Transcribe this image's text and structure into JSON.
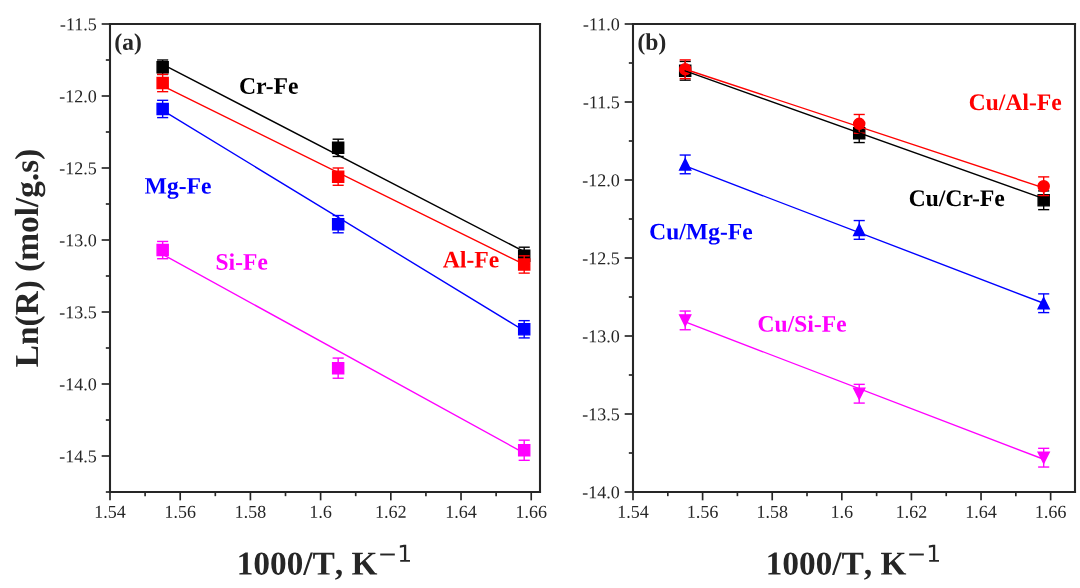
{
  "chart_data": [
    {
      "type": "scatter",
      "annotations": [
        "(a)"
      ],
      "xlabel": "1000/T, K$^{−1}$",
      "ylabel": "Ln(R) (mol/g.s)",
      "xlim": [
        1.54,
        1.6625
      ],
      "ylim": [
        -14.75,
        -11.5
      ],
      "xticks": [
        1.54,
        1.56,
        1.58,
        1.6,
        1.62,
        1.64,
        1.66
      ],
      "yticks": [
        {
          "value": -11.5,
          "label": "-11.5"
        },
        {
          "value": -12.0,
          "label": "-12.0"
        },
        {
          "value": -12.5,
          "label": "-12.5"
        },
        {
          "value": -13.0,
          "label": "-13.0"
        },
        {
          "value": -13.5,
          "label": "-13.5"
        },
        {
          "value": -14.0,
          "label": "-14.0"
        },
        {
          "value": -14.5,
          "label": "-14.5"
        }
      ],
      "legend": false,
      "grid": false,
      "series": [
        {
          "name": "Cr-Fe",
          "color": "#000000",
          "marker": "square",
          "x": [
            1.555,
            1.605,
            1.658
          ],
          "values": [
            -11.8,
            -12.36,
            -13.11
          ],
          "errors": [
            0.05,
            0.06,
            0.06
          ]
        },
        {
          "name": "Al-Fe",
          "color": "#ff0000",
          "marker": "square",
          "x": [
            1.555,
            1.605,
            1.658
          ],
          "values": [
            -11.91,
            -12.56,
            -13.17
          ],
          "errors": [
            0.06,
            0.06,
            0.06
          ]
        },
        {
          "name": "Mg-Fe",
          "color": "#0000ff",
          "marker": "square",
          "x": [
            1.555,
            1.605,
            1.658
          ],
          "values": [
            -12.09,
            -12.89,
            -13.62
          ],
          "errors": [
            0.06,
            0.06,
            0.06
          ]
        },
        {
          "name": "Si-Fe",
          "color": "#ff00ff",
          "marker": "square",
          "x": [
            1.555,
            1.605,
            1.658
          ],
          "values": [
            -13.07,
            -13.89,
            -14.46
          ],
          "errors": [
            0.06,
            0.07,
            0.07
          ]
        },
        {
          "type": "line",
          "color": "#000000",
          "x": [
            1.555,
            1.658
          ],
          "values": [
            -11.78,
            -13.08
          ]
        },
        {
          "type": "line",
          "color": "#ff0000",
          "x": [
            1.555,
            1.658
          ],
          "values": [
            -11.93,
            -13.17
          ]
        },
        {
          "type": "line",
          "color": "#0000ff",
          "x": [
            1.555,
            1.658
          ],
          "values": [
            -12.1,
            -13.63
          ]
        },
        {
          "type": "line",
          "color": "#ff00ff",
          "x": [
            1.555,
            1.658
          ],
          "values": [
            -13.1,
            -14.48
          ]
        }
      ]
    },
    {
      "type": "scatter",
      "annotations": [
        "(b)"
      ],
      "xlabel": "1000/T, K$^{−1}$",
      "xlim": [
        1.54,
        1.667
      ],
      "ylim": [
        -14.0,
        -11.0
      ],
      "xticks": [
        1.54,
        1.56,
        1.58,
        1.6,
        1.62,
        1.64,
        1.66
      ],
      "yticks": [
        {
          "value": -11.0,
          "label": "-11.0"
        },
        {
          "value": -11.5,
          "label": "-11.5"
        },
        {
          "value": -12.0,
          "label": "-12.0"
        },
        {
          "value": -12.5,
          "label": "-12.5"
        },
        {
          "value": -13.0,
          "label": "-13.0"
        },
        {
          "value": -13.5,
          "label": "-13.5"
        },
        {
          "value": -14.0,
          "label": "-14.0"
        }
      ],
      "legend": false,
      "grid": false,
      "series": [
        {
          "name": "Cu/Cr-Fe",
          "color": "#000000",
          "marker": "square",
          "x": [
            1.555,
            1.605,
            1.658
          ],
          "values": [
            -11.3,
            -11.7,
            -12.13
          ],
          "errors": [
            0.06,
            0.06,
            0.06
          ]
        },
        {
          "name": "Cu/Al-Fe",
          "color": "#ff0000",
          "marker": "circle",
          "x": [
            1.555,
            1.605,
            1.658
          ],
          "values": [
            -11.29,
            -11.64,
            -12.04
          ],
          "errors": [
            0.06,
            0.06,
            0.06
          ]
        },
        {
          "name": "Cu/Mg-Fe",
          "color": "#0000ff",
          "marker": "triangle",
          "x": [
            1.555,
            1.605,
            1.658
          ],
          "values": [
            -11.9,
            -12.32,
            -12.79
          ],
          "errors": [
            0.06,
            0.06,
            0.06
          ]
        },
        {
          "name": "Cu/Si-Fe",
          "color": "#ff00ff",
          "marker": "triangle_down",
          "x": [
            1.555,
            1.605,
            1.658
          ],
          "values": [
            -12.9,
            -13.37,
            -13.78
          ],
          "errors": [
            0.06,
            0.06,
            0.06
          ]
        },
        {
          "type": "line",
          "color": "#000000",
          "x": [
            1.555,
            1.658
          ],
          "values": [
            -11.3,
            -12.12
          ]
        },
        {
          "type": "line",
          "color": "#ff0000",
          "x": [
            1.555,
            1.658
          ],
          "values": [
            -11.29,
            -12.05
          ]
        },
        {
          "type": "line",
          "color": "#0000ff",
          "x": [
            1.555,
            1.658
          ],
          "values": [
            -11.91,
            -12.79
          ]
        },
        {
          "type": "line",
          "color": "#ff00ff",
          "x": [
            1.555,
            1.658
          ],
          "values": [
            -12.91,
            -13.79
          ]
        }
      ]
    }
  ]
}
